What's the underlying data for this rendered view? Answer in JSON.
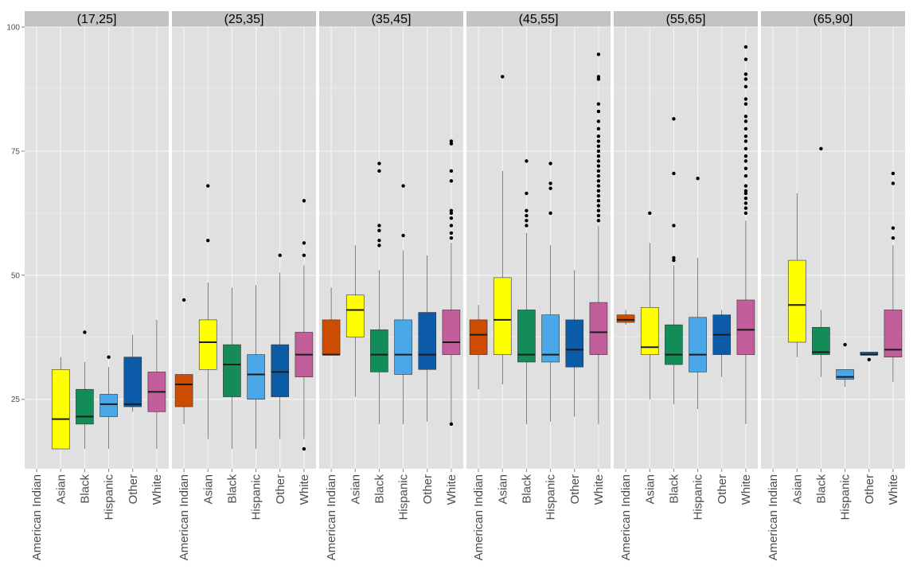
{
  "colors": {
    "background": "#ffffff",
    "panel": "#e0e0e0",
    "grid": "#f5f5f5",
    "strip": "#c3c3c3",
    "American Indian": "#cc4c02",
    "Asian": "#ffff00",
    "Black": "#138c5a",
    "Hispanic": "#4aa8e8",
    "Other": "#0c5ba8",
    "White": "#c25e9a"
  },
  "chart_data": {
    "type": "boxplot",
    "facet_variable": "age group",
    "facets": [
      "(17,25]",
      "(25,35]",
      "(35,45]",
      "(45,55]",
      "(55,65]",
      "(65,90]"
    ],
    "categories": [
      "American Indian",
      "Asian",
      "Black",
      "Hispanic",
      "Other",
      "White"
    ],
    "ylim": [
      11,
      100
    ],
    "yticks": [
      25,
      50,
      75,
      100
    ],
    "xlabel": "",
    "ylabel": "",
    "legend": "none",
    "panels": [
      {
        "facet": "(17,25]",
        "boxes": [
          {
            "category": "Asian",
            "min": 15,
            "q1": 15,
            "median": 21,
            "q3": 31,
            "max": 33.5,
            "outliers": []
          },
          {
            "category": "Black",
            "min": 15,
            "q1": 20,
            "median": 21.5,
            "q3": 27,
            "max": 32.5,
            "outliers": [
              38.5
            ]
          },
          {
            "category": "Hispanic",
            "min": 15,
            "q1": 21.5,
            "median": 24,
            "q3": 26,
            "max": 31.5,
            "outliers": [
              33.5
            ]
          },
          {
            "category": "Other",
            "min": 22.5,
            "q1": 23.5,
            "median": 24,
            "q3": 33.5,
            "max": 38,
            "outliers": []
          },
          {
            "category": "White",
            "min": 15,
            "q1": 22.5,
            "median": 26.5,
            "q3": 30.5,
            "max": 41,
            "outliers": []
          }
        ]
      },
      {
        "facet": "(25,35]",
        "boxes": [
          {
            "category": "American Indian",
            "min": 20,
            "q1": 23.5,
            "median": 28,
            "q3": 30,
            "max": 30,
            "outliers": [
              45
            ]
          },
          {
            "category": "Asian",
            "min": 17,
            "q1": 31,
            "median": 36.5,
            "q3": 41,
            "max": 48.5,
            "outliers": [
              57,
              68
            ]
          },
          {
            "category": "Black",
            "min": 15,
            "q1": 25.5,
            "median": 32,
            "q3": 36,
            "max": 47.5,
            "outliers": []
          },
          {
            "category": "Hispanic",
            "min": 15,
            "q1": 25,
            "median": 30,
            "q3": 34,
            "max": 48,
            "outliers": []
          },
          {
            "category": "Other",
            "min": 17,
            "q1": 25.5,
            "median": 30.5,
            "q3": 36,
            "max": 50.5,
            "outliers": [
              54
            ]
          },
          {
            "category": "White",
            "min": 17,
            "q1": 29.5,
            "median": 34,
            "q3": 38.5,
            "max": 52,
            "outliers": [
              15,
              54,
              56.5,
              65
            ]
          }
        ]
      },
      {
        "facet": "(35,45]",
        "boxes": [
          {
            "category": "American Indian",
            "min": 34,
            "q1": 34,
            "median": 34,
            "q3": 41,
            "max": 47.5,
            "outliers": []
          },
          {
            "category": "Asian",
            "min": 25.5,
            "q1": 37.5,
            "median": 43,
            "q3": 46,
            "max": 56,
            "outliers": []
          },
          {
            "category": "Black",
            "min": 20,
            "q1": 30.5,
            "median": 34,
            "q3": 39,
            "max": 51,
            "outliers": [
              56,
              57,
              59,
              60,
              71,
              72.5
            ]
          },
          {
            "category": "Hispanic",
            "min": 20,
            "q1": 30,
            "median": 34,
            "q3": 41,
            "max": 55,
            "outliers": [
              58,
              68
            ]
          },
          {
            "category": "Other",
            "min": 20.5,
            "q1": 31,
            "median": 34,
            "q3": 42.5,
            "max": 54,
            "outliers": []
          },
          {
            "category": "White",
            "min": 20,
            "q1": 34,
            "median": 36.5,
            "q3": 43,
            "max": 56.5,
            "outliers": [
              20,
              57.5,
              58.5,
              60,
              61.5,
              62.5,
              63,
              69,
              71,
              76.5,
              77
            ]
          }
        ]
      },
      {
        "facet": "(45,55]",
        "boxes": [
          {
            "category": "American Indian",
            "min": 27,
            "q1": 34,
            "median": 38,
            "q3": 41,
            "max": 44,
            "outliers": []
          },
          {
            "category": "Asian",
            "min": 28,
            "q1": 34,
            "median": 41,
            "q3": 49.5,
            "max": 71,
            "outliers": [
              90
            ]
          },
          {
            "category": "Black",
            "min": 20,
            "q1": 32.5,
            "median": 34,
            "q3": 43,
            "max": 58.5,
            "outliers": [
              60,
              61,
              62,
              63,
              66.5,
              73
            ]
          },
          {
            "category": "Hispanic",
            "min": 20.5,
            "q1": 32.5,
            "median": 34,
            "q3": 42,
            "max": 56,
            "outliers": [
              62.5,
              67.5,
              68.5,
              72.5
            ]
          },
          {
            "category": "Other",
            "min": 21.5,
            "q1": 31.5,
            "median": 35,
            "q3": 41,
            "max": 51,
            "outliers": []
          },
          {
            "category": "White",
            "min": 20,
            "q1": 34,
            "median": 38.5,
            "q3": 44.5,
            "max": 60,
            "outliers": [
              61,
              62,
              63,
              64,
              65,
              66,
              67,
              68,
              69,
              70,
              71,
              72,
              73,
              74,
              75,
              76,
              77,
              78,
              79.5,
              81,
              83,
              84.5,
              89.5,
              90,
              94.5
            ]
          }
        ]
      },
      {
        "facet": "(55,65]",
        "boxes": [
          {
            "category": "American Indian",
            "min": 40,
            "q1": 40.5,
            "median": 41,
            "q3": 42,
            "max": 43,
            "outliers": []
          },
          {
            "category": "Asian",
            "min": 25,
            "q1": 34,
            "median": 35.5,
            "q3": 43.5,
            "max": 56.5,
            "outliers": [
              62.5
            ]
          },
          {
            "category": "Black",
            "min": 24,
            "q1": 32,
            "median": 34,
            "q3": 40,
            "max": 52,
            "outliers": [
              53,
              53.5,
              60,
              70.5,
              81.5
            ]
          },
          {
            "category": "Hispanic",
            "min": 23,
            "q1": 30.5,
            "median": 34,
            "q3": 41.5,
            "max": 53.5,
            "outliers": [
              69.5
            ]
          },
          {
            "category": "Other",
            "min": 29.5,
            "q1": 34,
            "median": 38,
            "q3": 42,
            "max": 43,
            "outliers": []
          },
          {
            "category": "White",
            "min": 20,
            "q1": 34,
            "median": 39,
            "q3": 45,
            "max": 61,
            "outliers": [
              62.5,
              63.5,
              64.5,
              65.5,
              66.5,
              67,
              68,
              70,
              71.5,
              73,
              74,
              75.5,
              77,
              78,
              79.5,
              81,
              82,
              84.5,
              85.5,
              88,
              89.5,
              90.5,
              93.5,
              96
            ]
          }
        ]
      },
      {
        "facet": "(65,90]",
        "boxes": [
          {
            "category": "Asian",
            "min": 33.5,
            "q1": 36.5,
            "median": 44,
            "q3": 53,
            "max": 66.5,
            "outliers": []
          },
          {
            "category": "Black",
            "min": 29.5,
            "q1": 34,
            "median": 34.5,
            "q3": 39.5,
            "max": 43,
            "outliers": [
              75.5
            ]
          },
          {
            "category": "Hispanic",
            "min": 27.5,
            "q1": 29,
            "median": 29.5,
            "q3": 31,
            "max": 31,
            "outliers": [
              36
            ]
          },
          {
            "category": "Other",
            "min": 34,
            "q1": 34,
            "median": 34,
            "q3": 34.5,
            "max": 34.5,
            "outliers": [
              33
            ]
          },
          {
            "category": "White",
            "min": 28.5,
            "q1": 33.5,
            "median": 35,
            "q3": 43,
            "max": 56,
            "outliers": [
              57.5,
              59.5,
              68.5,
              70.5
            ]
          }
        ]
      }
    ]
  }
}
